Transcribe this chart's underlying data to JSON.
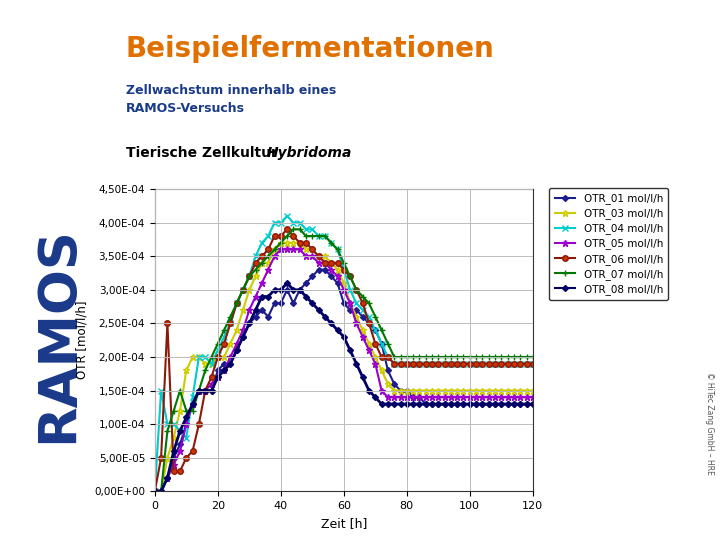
{
  "title_main": "Beispielfermentationen",
  "subtitle": "Zellwachstum innerhalb eines\nRAMOS-Versuchs",
  "chart_title_normal": "Tierische Zellkultur ",
  "chart_title_italic": "Hybridoma",
  "xlabel": "Zeit [h]",
  "ylabel": "OTR [mol/l/h]",
  "xlim": [
    0,
    120
  ],
  "ylim": [
    0,
    0.00045
  ],
  "yticks": [
    0,
    5e-05,
    0.0001,
    0.00015,
    0.0002,
    0.00025,
    0.0003,
    0.00035,
    0.0004,
    0.00045
  ],
  "xticks": [
    0,
    20,
    40,
    60,
    80,
    100,
    120
  ],
  "ytick_labels": [
    "0,00E+00",
    "5,00E-05",
    "1,00E-04",
    "1,50E-04",
    "2,00E-04",
    "2,50E-04",
    "3,00E-04",
    "3,50E-04",
    "4,00E-04",
    "4,50E-04"
  ],
  "background_color": "#f0f0f0",
  "left_panel_color": "#c0c0c8",
  "plot_bg_color": "#ffffff",
  "title_color": "#e07000",
  "subtitle_color": "#1a3a8a",
  "chart_title_color": "#000000",
  "ramos_color": "#1a3a8a",
  "copyright_color": "#555555",
  "series": [
    {
      "name": "OTR_01 mol/l/h",
      "color": "#1c1c8c",
      "marker": "D",
      "marker_face": "#1c1c8c",
      "linewidth": 1.5,
      "markersize": 3,
      "x": [
        0,
        2,
        4,
        6,
        8,
        10,
        12,
        14,
        16,
        18,
        20,
        22,
        24,
        26,
        28,
        30,
        32,
        34,
        36,
        38,
        40,
        42,
        44,
        46,
        48,
        50,
        52,
        54,
        56,
        58,
        60,
        62,
        64,
        66,
        68,
        70,
        72,
        74,
        76,
        78,
        80,
        82,
        84,
        86,
        88,
        90,
        92,
        94,
        96,
        98,
        100,
        102,
        104,
        106,
        108,
        110,
        112,
        114,
        116,
        118,
        120
      ],
      "y": [
        0,
        0,
        2e-05,
        5e-05,
        7e-05,
        0.0001,
        0.00013,
        0.00015,
        0.00015,
        0.00015,
        0.00018,
        0.00019,
        0.00019,
        0.00021,
        0.00023,
        0.00025,
        0.00026,
        0.00027,
        0.00026,
        0.00028,
        0.00028,
        0.0003,
        0.00028,
        0.0003,
        0.00031,
        0.00032,
        0.00033,
        0.00033,
        0.00032,
        0.00031,
        0.00028,
        0.00027,
        0.00027,
        0.00026,
        0.00025,
        0.00024,
        0.00022,
        0.00018,
        0.00016,
        0.00015,
        0.00015,
        0.00014,
        0.00014,
        0.00013,
        0.00013,
        0.00013,
        0.00013,
        0.00013,
        0.00013,
        0.00013,
        0.00013,
        0.00013,
        0.00013,
        0.00013,
        0.00013,
        0.00013,
        0.00013,
        0.00013,
        0.00013,
        0.00013,
        0.00013
      ]
    },
    {
      "name": "OTR_03 mol/l/h",
      "color": "#cccc00",
      "marker": "*",
      "marker_face": "#ffff00",
      "linewidth": 1.5,
      "markersize": 5,
      "x": [
        0,
        2,
        4,
        6,
        8,
        10,
        12,
        14,
        16,
        18,
        20,
        22,
        24,
        26,
        28,
        30,
        32,
        34,
        36,
        38,
        40,
        42,
        44,
        46,
        48,
        50,
        52,
        54,
        56,
        58,
        60,
        62,
        64,
        66,
        68,
        70,
        72,
        74,
        76,
        78,
        80,
        82,
        84,
        86,
        88,
        90,
        92,
        94,
        96,
        98,
        100,
        102,
        104,
        106,
        108,
        110,
        112,
        114,
        116,
        118,
        120
      ],
      "y": [
        0,
        0,
        5e-05,
        8e-05,
        0.00012,
        0.00018,
        0.0002,
        0.0002,
        0.00019,
        0.00019,
        0.0002,
        0.0002,
        0.00022,
        0.00024,
        0.00027,
        0.0003,
        0.00032,
        0.00034,
        0.00034,
        0.00036,
        0.00037,
        0.00037,
        0.00037,
        0.00037,
        0.00036,
        0.00036,
        0.00035,
        0.00035,
        0.00034,
        0.00033,
        0.00031,
        0.00028,
        0.00026,
        0.00024,
        0.00022,
        0.0002,
        0.00018,
        0.00016,
        0.00015,
        0.00015,
        0.00015,
        0.00015,
        0.00015,
        0.00015,
        0.00015,
        0.00015,
        0.00015,
        0.00015,
        0.00015,
        0.00015,
        0.00015,
        0.00015,
        0.00015,
        0.00015,
        0.00015,
        0.00015,
        0.00015,
        0.00015,
        0.00015,
        0.00015,
        0.00015
      ]
    },
    {
      "name": "OTR_04 mol/l/h",
      "color": "#00cccc",
      "marker": "x",
      "marker_face": "#00cccc",
      "linewidth": 1.5,
      "markersize": 5,
      "x": [
        0,
        2,
        4,
        6,
        8,
        10,
        12,
        14,
        16,
        18,
        20,
        22,
        24,
        26,
        28,
        30,
        32,
        34,
        36,
        38,
        40,
        42,
        44,
        46,
        48,
        50,
        52,
        54,
        56,
        58,
        60,
        62,
        64,
        66,
        68,
        70,
        72,
        74,
        76,
        78,
        80,
        82,
        84,
        86,
        88,
        90,
        92,
        94,
        96,
        98,
        100,
        102,
        104,
        106,
        108,
        110,
        112,
        114,
        116,
        118,
        120
      ],
      "y": [
        0,
        0.00015,
        0.0001,
        0.0001,
        9e-05,
        8e-05,
        0.00014,
        0.0002,
        0.0002,
        0.00019,
        0.00021,
        0.00023,
        0.00025,
        0.00028,
        0.0003,
        0.00032,
        0.00035,
        0.00037,
        0.00038,
        0.0004,
        0.0004,
        0.00041,
        0.0004,
        0.0004,
        0.00039,
        0.00039,
        0.00038,
        0.00038,
        0.00037,
        0.00036,
        0.00033,
        0.0003,
        0.00028,
        0.00027,
        0.00026,
        0.00024,
        0.00022,
        0.0002,
        0.00019,
        0.00019,
        0.00019,
        0.00019,
        0.00019,
        0.00019,
        0.00019,
        0.00019,
        0.00019,
        0.00019,
        0.00019,
        0.00019,
        0.00019,
        0.00019,
        0.00019,
        0.00019,
        0.00019,
        0.00019,
        0.00019,
        0.00019,
        0.00019,
        0.00019,
        0.00019
      ]
    },
    {
      "name": "OTR_05 mol/l/h",
      "color": "#9900cc",
      "marker": "*",
      "marker_face": "#cc00cc",
      "linewidth": 1.5,
      "markersize": 5,
      "x": [
        0,
        2,
        4,
        6,
        8,
        10,
        12,
        14,
        16,
        18,
        20,
        22,
        24,
        26,
        28,
        30,
        32,
        34,
        36,
        38,
        40,
        42,
        44,
        46,
        48,
        50,
        52,
        54,
        56,
        58,
        60,
        62,
        64,
        66,
        68,
        70,
        72,
        74,
        76,
        78,
        80,
        82,
        84,
        86,
        88,
        90,
        92,
        94,
        96,
        98,
        100,
        102,
        104,
        106,
        108,
        110,
        112,
        114,
        116,
        118,
        120
      ],
      "y": [
        0,
        0,
        2e-05,
        4e-05,
        6e-05,
        0.0001,
        0.00013,
        0.00015,
        0.00015,
        0.00016,
        0.00017,
        0.00018,
        0.0002,
        0.00022,
        0.00024,
        0.00027,
        0.00029,
        0.00031,
        0.00033,
        0.00035,
        0.00036,
        0.00036,
        0.00036,
        0.00036,
        0.00035,
        0.00035,
        0.00034,
        0.00034,
        0.00033,
        0.00032,
        0.0003,
        0.00028,
        0.00025,
        0.00023,
        0.00021,
        0.00019,
        0.00015,
        0.00014,
        0.00014,
        0.00014,
        0.00014,
        0.00014,
        0.00014,
        0.00014,
        0.00014,
        0.00014,
        0.00014,
        0.00014,
        0.00014,
        0.00014,
        0.00014,
        0.00014,
        0.00014,
        0.00014,
        0.00014,
        0.00014,
        0.00014,
        0.00014,
        0.00014,
        0.00014,
        0.00014
      ]
    },
    {
      "name": "OTR_06 mol/l/h",
      "color": "#8B1a0a",
      "marker": "o",
      "marker_face": "#cc3300",
      "linewidth": 1.5,
      "markersize": 4,
      "x": [
        0,
        2,
        4,
        6,
        8,
        10,
        12,
        14,
        16,
        18,
        20,
        22,
        24,
        26,
        28,
        30,
        32,
        34,
        36,
        38,
        40,
        42,
        44,
        46,
        48,
        50,
        52,
        54,
        56,
        58,
        60,
        62,
        64,
        66,
        68,
        70,
        72,
        74,
        76,
        78,
        80,
        82,
        84,
        86,
        88,
        90,
        92,
        94,
        96,
        98,
        100,
        102,
        104,
        106,
        108,
        110,
        112,
        114,
        116,
        118,
        120
      ],
      "y": [
        0,
        5e-05,
        0.00025,
        3e-05,
        3e-05,
        5e-05,
        6e-05,
        0.0001,
        0.00015,
        0.00017,
        0.0002,
        0.00022,
        0.00025,
        0.00028,
        0.0003,
        0.00032,
        0.00034,
        0.00035,
        0.00036,
        0.00038,
        0.00038,
        0.00039,
        0.00038,
        0.00037,
        0.00037,
        0.00036,
        0.00035,
        0.00034,
        0.00034,
        0.00034,
        0.00033,
        0.00032,
        0.0003,
        0.00028,
        0.00025,
        0.00022,
        0.0002,
        0.0002,
        0.00019,
        0.00019,
        0.00019,
        0.00019,
        0.00019,
        0.00019,
        0.00019,
        0.00019,
        0.00019,
        0.00019,
        0.00019,
        0.00019,
        0.00019,
        0.00019,
        0.00019,
        0.00019,
        0.00019,
        0.00019,
        0.00019,
        0.00019,
        0.00019,
        0.00019,
        0.00019
      ]
    },
    {
      "name": "OTR_07 mol/l/h",
      "color": "#007700",
      "marker": "+",
      "marker_face": "#007700",
      "linewidth": 1.5,
      "markersize": 5,
      "x": [
        0,
        2,
        4,
        6,
        8,
        10,
        12,
        14,
        16,
        18,
        20,
        22,
        24,
        26,
        28,
        30,
        32,
        34,
        36,
        38,
        40,
        42,
        44,
        46,
        48,
        50,
        52,
        54,
        56,
        58,
        60,
        62,
        64,
        66,
        68,
        70,
        72,
        74,
        76,
        78,
        80,
        82,
        84,
        86,
        88,
        90,
        92,
        94,
        96,
        98,
        100,
        102,
        104,
        106,
        108,
        110,
        112,
        114,
        116,
        118,
        120
      ],
      "y": [
        0,
        0,
        9e-05,
        0.00012,
        0.00015,
        0.00012,
        0.00012,
        0.00015,
        0.00018,
        0.0002,
        0.00022,
        0.00024,
        0.00026,
        0.00028,
        0.0003,
        0.00032,
        0.00033,
        0.00034,
        0.00035,
        0.00036,
        0.00037,
        0.00038,
        0.00039,
        0.00039,
        0.00038,
        0.00038,
        0.00038,
        0.00038,
        0.00037,
        0.00036,
        0.00034,
        0.00032,
        0.0003,
        0.00029,
        0.00028,
        0.00026,
        0.00024,
        0.00022,
        0.0002,
        0.0002,
        0.0002,
        0.0002,
        0.0002,
        0.0002,
        0.0002,
        0.0002,
        0.0002,
        0.0002,
        0.0002,
        0.0002,
        0.0002,
        0.0002,
        0.0002,
        0.0002,
        0.0002,
        0.0002,
        0.0002,
        0.0002,
        0.0002,
        0.0002,
        0.0002
      ]
    },
    {
      "name": "OTR_08 mol/l/h",
      "color": "#000066",
      "marker": "D",
      "marker_face": "#000066",
      "linewidth": 2.0,
      "markersize": 3,
      "x": [
        0,
        2,
        4,
        6,
        8,
        10,
        12,
        14,
        16,
        18,
        20,
        22,
        24,
        26,
        28,
        30,
        32,
        34,
        36,
        38,
        40,
        42,
        44,
        46,
        48,
        50,
        52,
        54,
        56,
        58,
        60,
        62,
        64,
        66,
        68,
        70,
        72,
        74,
        76,
        78,
        80,
        82,
        84,
        86,
        88,
        90,
        92,
        94,
        96,
        98,
        100,
        102,
        104,
        106,
        108,
        110,
        112,
        114,
        116,
        118,
        120
      ],
      "y": [
        0,
        0,
        2e-05,
        6e-05,
        9e-05,
        0.00011,
        0.00013,
        0.00015,
        0.00015,
        0.00015,
        0.00017,
        0.00018,
        0.00019,
        0.00021,
        0.00023,
        0.00025,
        0.00027,
        0.00029,
        0.00029,
        0.0003,
        0.0003,
        0.00031,
        0.0003,
        0.0003,
        0.00029,
        0.00028,
        0.00027,
        0.00026,
        0.00025,
        0.00024,
        0.00023,
        0.00021,
        0.00019,
        0.00017,
        0.00015,
        0.00014,
        0.00013,
        0.00013,
        0.00013,
        0.00013,
        0.00013,
        0.00013,
        0.00013,
        0.00013,
        0.00013,
        0.00013,
        0.00013,
        0.00013,
        0.00013,
        0.00013,
        0.00013,
        0.00013,
        0.00013,
        0.00013,
        0.00013,
        0.00013,
        0.00013,
        0.00013,
        0.00013,
        0.00013,
        0.00013
      ]
    }
  ]
}
